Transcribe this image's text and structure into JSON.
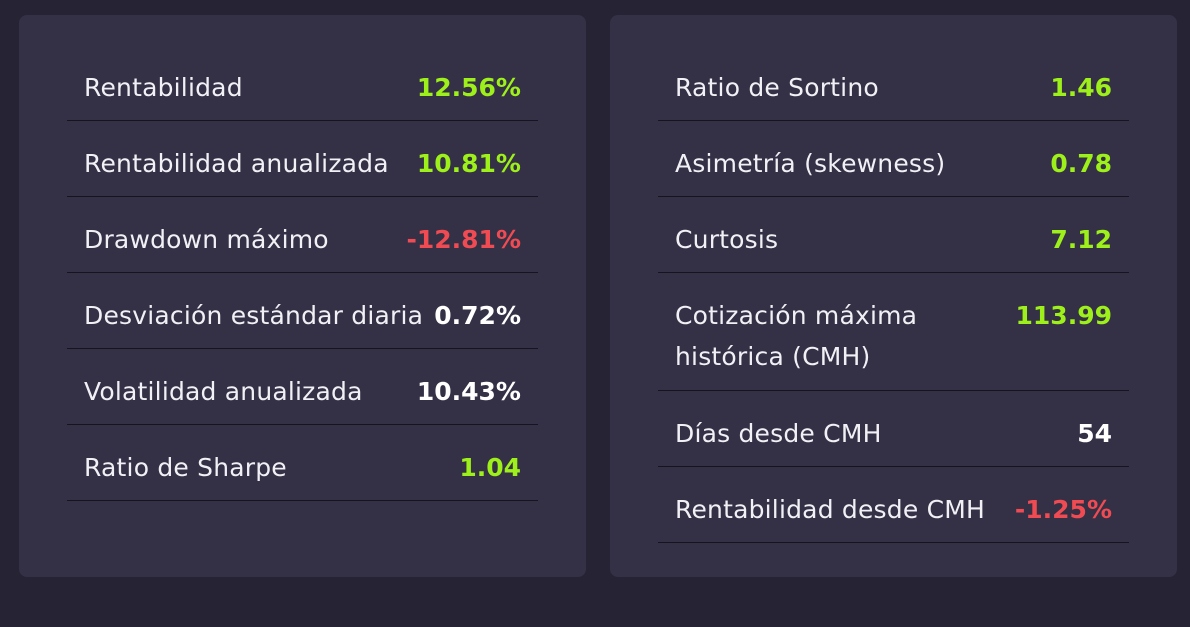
{
  "colors": {
    "positive": "#9ef01a",
    "negative": "#f04b52",
    "neutral": "#ffffff"
  },
  "left_panel": {
    "rows": [
      {
        "label": "Rentabilidad",
        "value": "12.56%",
        "tone": "positive"
      },
      {
        "label": "Rentabilidad anualizada",
        "value": "10.81%",
        "tone": "positive"
      },
      {
        "label": "Drawdown máximo",
        "value": "-12.81%",
        "tone": "negative"
      },
      {
        "label": "Desviación estándar diaria",
        "value": "0.72%",
        "tone": "neutral"
      },
      {
        "label": "Volatilidad anualizada",
        "value": "10.43%",
        "tone": "neutral"
      },
      {
        "label": "Ratio de Sharpe",
        "value": "1.04",
        "tone": "positive"
      }
    ]
  },
  "right_panel": {
    "rows": [
      {
        "label": "Ratio de Sortino",
        "value": "1.46",
        "tone": "positive"
      },
      {
        "label": "Asimetría (skewness)",
        "value": "0.78",
        "tone": "positive"
      },
      {
        "label": "Curtosis",
        "value": "7.12",
        "tone": "positive"
      },
      {
        "label": "Cotización máxima histórica (CMH)",
        "value": "113.99",
        "tone": "positive"
      },
      {
        "label": "Días desde CMH",
        "value": "54",
        "tone": "neutral"
      },
      {
        "label": "Rentabilidad desde CMH",
        "value": "-1.25%",
        "tone": "negative"
      }
    ]
  }
}
